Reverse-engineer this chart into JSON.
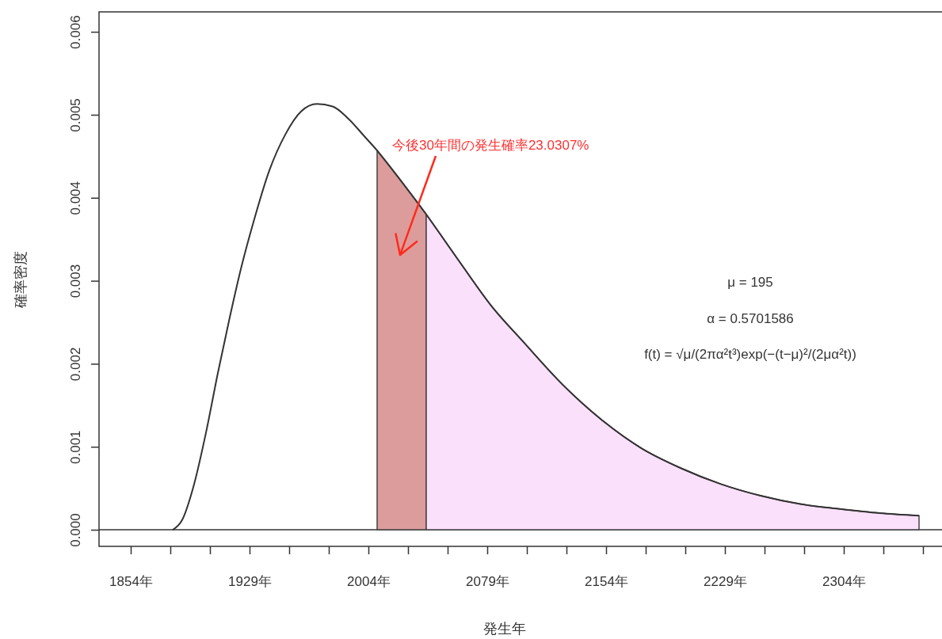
{
  "chart_data": {
    "type": "line",
    "xlabel": "発生年",
    "ylabel": "確率密度",
    "xlim": [
      1834,
      2366
    ],
    "ylim": [
      -0.0002,
      0.00624
    ],
    "xticks": [
      {
        "value": 1854,
        "label": "1854年"
      },
      {
        "value": 1879,
        "label": null
      },
      {
        "value": 1904,
        "label": null
      },
      {
        "value": 1929,
        "label": "1929年"
      },
      {
        "value": 1954,
        "label": null
      },
      {
        "value": 1979,
        "label": null
      },
      {
        "value": 2004,
        "label": "2004年"
      },
      {
        "value": 2029,
        "label": null
      },
      {
        "value": 2054,
        "label": null
      },
      {
        "value": 2079,
        "label": "2079年"
      },
      {
        "value": 2104,
        "label": null
      },
      {
        "value": 2129,
        "label": null
      },
      {
        "value": 2154,
        "label": "2154年"
      },
      {
        "value": 2179,
        "label": null
      },
      {
        "value": 2204,
        "label": null
      },
      {
        "value": 2229,
        "label": "2229年"
      },
      {
        "value": 2254,
        "label": null
      },
      {
        "value": 2279,
        "label": null
      },
      {
        "value": 2304,
        "label": "2304年"
      },
      {
        "value": 2329,
        "label": null
      },
      {
        "value": 2354,
        "label": null
      }
    ],
    "yticks": [
      {
        "value": 0,
        "label": "0.000"
      },
      {
        "value": 0.001,
        "label": "0.001"
      },
      {
        "value": 0.002,
        "label": "0.002"
      },
      {
        "value": 0.003,
        "label": "0.003"
      },
      {
        "value": 0.004,
        "label": "0.004"
      },
      {
        "value": 0.005,
        "label": "0.005"
      },
      {
        "value": 0.006,
        "label": "0.006"
      }
    ],
    "grid": false,
    "series": [
      {
        "type": "area",
        "color": "#dc9c9c",
        "x": [
          2009.5,
          2021.5,
          2040.5
        ],
        "values": [
          0.00457,
          0.00428,
          0.0038
        ]
      },
      {
        "type": "area",
        "color": "#fbe0fb",
        "x": [
          2040.5,
          2061.5,
          2081.5,
          2101.5,
          2126.5,
          2151.5,
          2176.5,
          2201.5,
          2226.5,
          2251.5,
          2276.5,
          2301.5,
          2326.5,
          2351.5
        ],
        "values": [
          0.0038,
          0.00323,
          0.0027,
          0.00227,
          0.00175,
          0.00132,
          0.00098,
          0.00074,
          0.00055,
          0.00041,
          0.00031,
          0.00025,
          0.0002,
          0.00017
        ]
      },
      {
        "color": "#333333",
        "x": [
          1880.5,
          1886.5,
          1894,
          1901.5,
          1909,
          1916.5,
          1924,
          1931.5,
          1941.5,
          1951.5,
          1961.5,
          1971.5,
          1981.5,
          1991.5,
          2001.5,
          2009.5,
          2021.5,
          2040.5,
          2061.5,
          2081.5,
          2101.5,
          2126.5,
          2151.5,
          2176.5,
          2201.5,
          2226.5,
          2251.5,
          2276.5,
          2301.5,
          2326.5,
          2351.5
        ],
        "values": [
          0,
          0.00012,
          0.00055,
          0.00117,
          0.00189,
          0.00256,
          0.00318,
          0.00371,
          0.00433,
          0.00476,
          0.00504,
          0.00513,
          0.0051,
          0.00495,
          0.00474,
          0.00457,
          0.00428,
          0.0038,
          0.00323,
          0.0027,
          0.00227,
          0.00175,
          0.00132,
          0.00098,
          0.00074,
          0.00055,
          0.00041,
          0.00031,
          0.00025,
          0.0002,
          0.00017
        ]
      }
    ],
    "ref_lines": [
      {
        "axis": "y",
        "value": 0,
        "color": "#333333"
      }
    ],
    "annotations": [
      "今後30年間の発生確率23.0307%",
      "μ = 195",
      "α = 0.5701586",
      "f(t) = √μ/(2πα²t³)exp(−(t−μ)²/(2μα²t))"
    ]
  }
}
